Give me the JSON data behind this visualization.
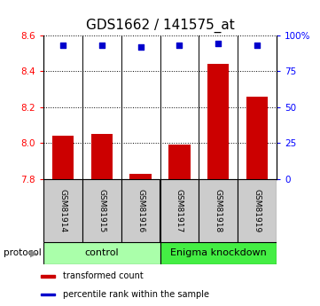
{
  "title": "GDS1662 / 141575_at",
  "samples": [
    "GSM81914",
    "GSM81915",
    "GSM81916",
    "GSM81917",
    "GSM81918",
    "GSM81919"
  ],
  "red_values": [
    8.04,
    8.05,
    7.83,
    7.99,
    8.44,
    8.26
  ],
  "blue_values": [
    93,
    93,
    92,
    93,
    94,
    93
  ],
  "ylim_left": [
    7.8,
    8.6
  ],
  "ylim_right": [
    0,
    100
  ],
  "yticks_left": [
    7.8,
    8.0,
    8.2,
    8.4,
    8.6
  ],
  "yticks_right": [
    0,
    25,
    50,
    75,
    100
  ],
  "ytick_labels_right": [
    "0",
    "25",
    "50",
    "75",
    "100%"
  ],
  "groups": [
    {
      "label": "control",
      "indices": [
        0,
        1,
        2
      ],
      "color": "#aaffaa"
    },
    {
      "label": "Enigma knockdown",
      "indices": [
        3,
        4,
        5
      ],
      "color": "#44ee44"
    }
  ],
  "protocol_label": "protocol",
  "legend_items": [
    {
      "color": "#cc0000",
      "label": "transformed count"
    },
    {
      "color": "#0000cc",
      "label": "percentile rank within the sample"
    }
  ],
  "bar_color": "#cc0000",
  "dot_color": "#0000cc",
  "bar_bottom": 7.8,
  "title_fontsize": 11,
  "tick_label_fontsize": 7.5,
  "sample_label_fontsize": 6.5,
  "group_label_fontsize": 8
}
